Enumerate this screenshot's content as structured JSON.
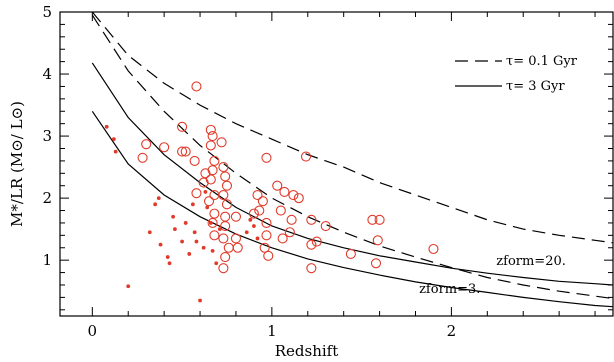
{
  "chart_data": {
    "type": "scatter",
    "xlabel": "Redshift",
    "ylabel": "M*/LR (M⊙/ L⊙)",
    "xlim": [
      -0.18,
      2.9
    ],
    "ylim": [
      0.1,
      5.0
    ],
    "xticks": [
      0,
      1,
      2
    ],
    "yticks": [
      1,
      2,
      3,
      4,
      5
    ],
    "legend_position": "top-right",
    "legend": [
      {
        "label": "τ= 0.1 Gyr",
        "style": "dashed"
      },
      {
        "label": "τ= 3 Gyr",
        "style": "solid"
      }
    ],
    "annotations": [
      {
        "text": "zform=20.",
        "x": 2.25,
        "y": 0.92
      },
      {
        "text": "zform=3.",
        "x": 1.82,
        "y": 0.47
      }
    ],
    "colors": {
      "points": "#e03a2a",
      "curves": "#000000"
    },
    "lines": [
      {
        "style": "dashed",
        "x": [
          0.0,
          0.2,
          0.4,
          0.6,
          0.8,
          1.0,
          1.2,
          1.4,
          1.6,
          1.8,
          2.0,
          2.2,
          2.4,
          2.6,
          2.8,
          2.9
        ],
        "y": [
          5.0,
          4.3,
          3.85,
          3.5,
          3.2,
          2.95,
          2.7,
          2.5,
          2.25,
          2.05,
          1.85,
          1.65,
          1.5,
          1.4,
          1.32,
          1.28
        ]
      },
      {
        "style": "dashed",
        "x": [
          0.0,
          0.2,
          0.4,
          0.6,
          0.8,
          1.0,
          1.2,
          1.4,
          1.6,
          1.8,
          2.0,
          2.2,
          2.4,
          2.6,
          2.8,
          2.9
        ],
        "y": [
          4.95,
          4.05,
          3.4,
          2.85,
          2.4,
          2.0,
          1.7,
          1.45,
          1.23,
          1.05,
          0.88,
          0.72,
          0.6,
          0.5,
          0.42,
          0.38
        ]
      },
      {
        "style": "solid",
        "x": [
          0.0,
          0.2,
          0.4,
          0.6,
          0.8,
          1.0,
          1.2,
          1.4,
          1.6,
          1.8,
          2.0,
          2.2,
          2.4,
          2.6,
          2.8,
          2.9
        ],
        "y": [
          4.18,
          3.3,
          2.7,
          2.25,
          1.85,
          1.55,
          1.35,
          1.2,
          1.07,
          0.97,
          0.87,
          0.79,
          0.72,
          0.66,
          0.62,
          0.6
        ]
      },
      {
        "style": "solid",
        "x": [
          0.0,
          0.2,
          0.4,
          0.6,
          0.8,
          1.0,
          1.2,
          1.4,
          1.6,
          1.8,
          2.0,
          2.2,
          2.4,
          2.6,
          2.8,
          2.9
        ],
        "y": [
          3.4,
          2.55,
          2.05,
          1.7,
          1.42,
          1.2,
          1.02,
          0.88,
          0.76,
          0.65,
          0.56,
          0.48,
          0.4,
          0.33,
          0.27,
          0.25
        ]
      }
    ],
    "series": [
      {
        "marker": "open-circle",
        "points": [
          [
            0.58,
            3.8
          ],
          [
            0.3,
            2.87
          ],
          [
            0.28,
            2.65
          ],
          [
            0.5,
            2.75
          ],
          [
            0.52,
            2.75
          ],
          [
            0.5,
            3.15
          ],
          [
            0.57,
            2.6
          ],
          [
            0.63,
            2.4
          ],
          [
            0.58,
            2.08
          ],
          [
            0.62,
            2.25
          ],
          [
            0.66,
            3.1
          ],
          [
            0.67,
            3.0
          ],
          [
            0.66,
            2.85
          ],
          [
            0.68,
            2.6
          ],
          [
            0.67,
            2.45
          ],
          [
            0.66,
            2.3
          ],
          [
            0.68,
            2.05
          ],
          [
            0.65,
            1.95
          ],
          [
            0.68,
            1.75
          ],
          [
            0.67,
            1.6
          ],
          [
            0.68,
            1.4
          ],
          [
            0.72,
            2.9
          ],
          [
            0.73,
            2.5
          ],
          [
            0.74,
            2.35
          ],
          [
            0.75,
            2.2
          ],
          [
            0.73,
            2.05
          ],
          [
            0.75,
            1.9
          ],
          [
            0.74,
            1.7
          ],
          [
            0.74,
            1.55
          ],
          [
            0.73,
            1.35
          ],
          [
            0.76,
            1.2
          ],
          [
            0.74,
            1.05
          ],
          [
            0.73,
            0.87
          ],
          [
            0.8,
            1.7
          ],
          [
            0.8,
            1.35
          ],
          [
            0.81,
            1.2
          ],
          [
            0.9,
            1.75
          ],
          [
            0.92,
            2.05
          ],
          [
            0.95,
            1.95
          ],
          [
            0.93,
            1.8
          ],
          [
            0.97,
            1.6
          ],
          [
            0.97,
            1.4
          ],
          [
            0.96,
            1.2
          ],
          [
            0.98,
            1.07
          ],
          [
            0.97,
            2.65
          ],
          [
            1.03,
            2.2
          ],
          [
            1.07,
            2.1
          ],
          [
            1.05,
            1.8
          ],
          [
            1.06,
            1.35
          ],
          [
            1.1,
            1.45
          ],
          [
            1.12,
            2.05
          ],
          [
            1.15,
            2.0
          ],
          [
            1.11,
            1.65
          ],
          [
            1.19,
            2.67
          ],
          [
            1.22,
            1.65
          ],
          [
            1.25,
            1.3
          ],
          [
            1.22,
            1.25
          ],
          [
            1.22,
            0.87
          ],
          [
            1.3,
            1.55
          ],
          [
            1.44,
            1.1
          ],
          [
            1.56,
            1.65
          ],
          [
            1.6,
            1.65
          ],
          [
            1.59,
            1.32
          ],
          [
            1.58,
            0.95
          ],
          [
            1.9,
            1.18
          ],
          [
            0.4,
            2.82
          ]
        ]
      },
      {
        "marker": "filled-dot",
        "points": [
          [
            0.08,
            3.15
          ],
          [
            0.12,
            2.95
          ],
          [
            0.13,
            2.75
          ],
          [
            0.2,
            0.58
          ],
          [
            0.32,
            1.45
          ],
          [
            0.35,
            1.9
          ],
          [
            0.37,
            2.0
          ],
          [
            0.38,
            1.25
          ],
          [
            0.42,
            1.05
          ],
          [
            0.43,
            0.95
          ],
          [
            0.45,
            1.7
          ],
          [
            0.46,
            1.5
          ],
          [
            0.5,
            1.3
          ],
          [
            0.52,
            1.6
          ],
          [
            0.54,
            1.1
          ],
          [
            0.56,
            1.9
          ],
          [
            0.57,
            1.45
          ],
          [
            0.58,
            1.3
          ],
          [
            0.6,
            0.35
          ],
          [
            0.62,
            1.2
          ],
          [
            0.63,
            2.1
          ],
          [
            0.64,
            1.85
          ],
          [
            0.66,
            1.6
          ],
          [
            0.67,
            1.15
          ],
          [
            0.69,
            0.95
          ],
          [
            0.71,
            1.5
          ],
          [
            0.86,
            1.45
          ],
          [
            0.88,
            1.65
          ],
          [
            0.9,
            1.55
          ],
          [
            0.92,
            1.35
          ]
        ]
      }
    ]
  }
}
